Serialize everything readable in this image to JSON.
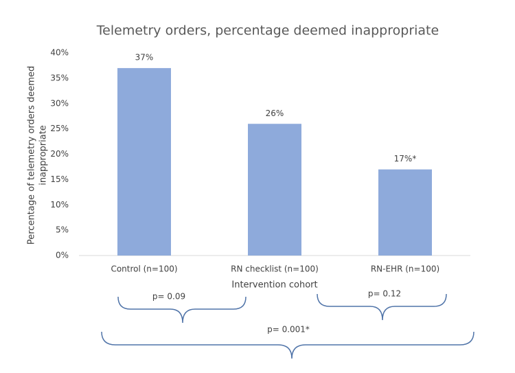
{
  "chart_data": {
    "type": "bar",
    "title": "Telemetry orders, percentage deemed inappropriate",
    "y_label": [
      "Percentage of telemetry orders deemed",
      "inappropriate"
    ],
    "x_label": "Intervention cohort",
    "categories": [
      "Control (n=100)",
      "RN checklist (n=100)",
      "RN-EHR (n=100)"
    ],
    "values": [
      37,
      26,
      17
    ],
    "value_labels": [
      "37%",
      "26%",
      "17%*"
    ],
    "color": "#8eaadb",
    "ylim": [
      0,
      40
    ],
    "yticks": [
      {
        "value": 0,
        "label": "0%"
      },
      {
        "value": 5,
        "label": "5%"
      },
      {
        "value": 10,
        "label": "10%"
      },
      {
        "value": 15,
        "label": "15%"
      },
      {
        "value": 20,
        "label": "20%"
      },
      {
        "value": 25,
        "label": "25%"
      },
      {
        "value": 30,
        "label": "30%"
      },
      {
        "value": 35,
        "label": "35%"
      },
      {
        "value": 40,
        "label": "40%"
      }
    ],
    "grid": false,
    "annotations": [
      {
        "text": "p= 0.09"
      },
      {
        "text": "p= 0.12"
      },
      {
        "text": "p= 0.001*"
      }
    ]
  }
}
